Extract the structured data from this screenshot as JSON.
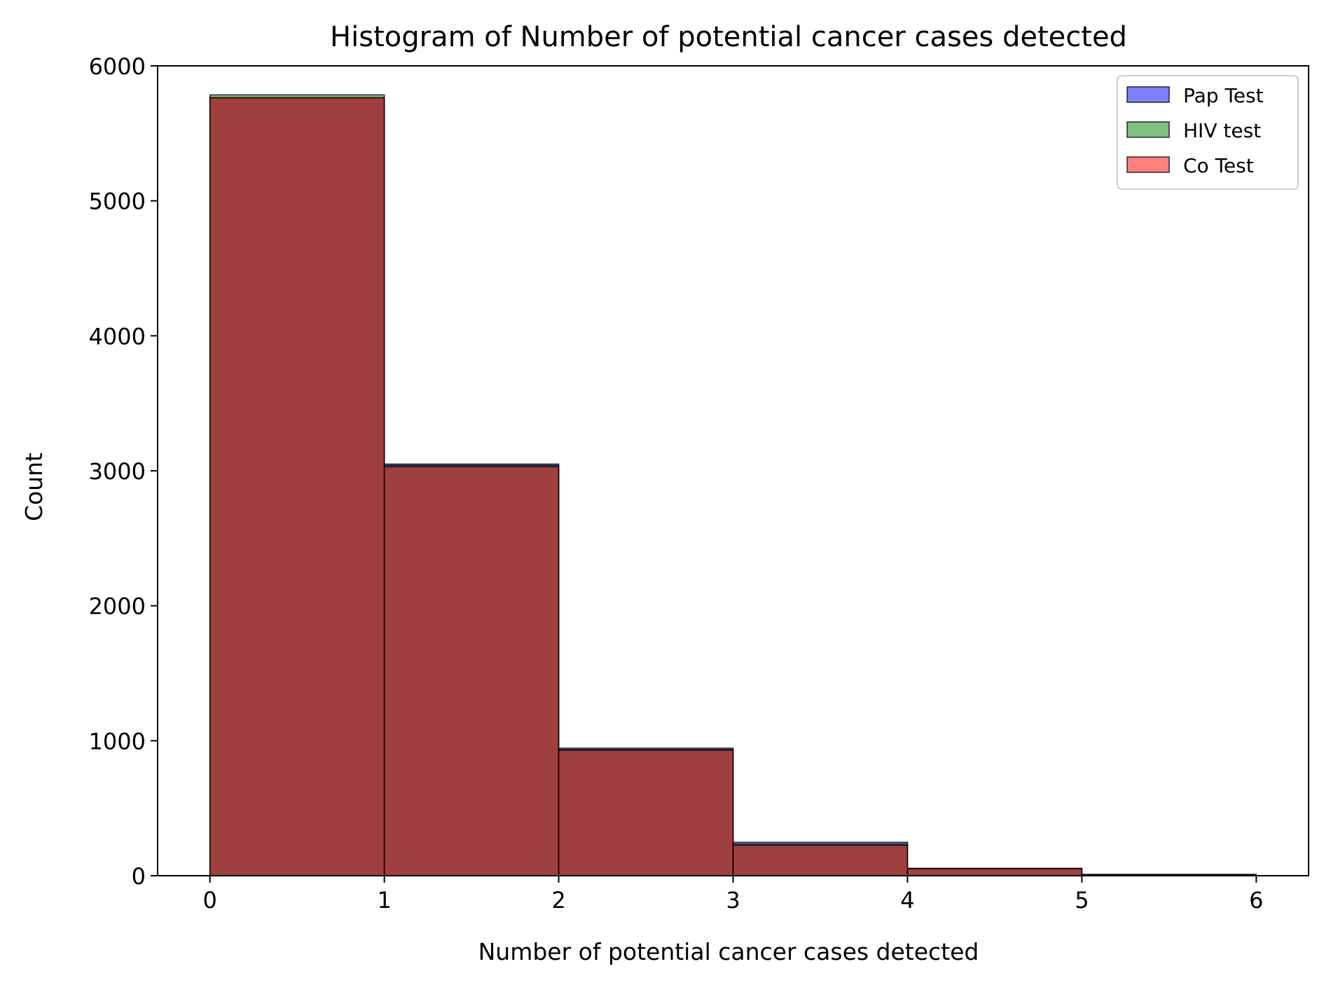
{
  "chart_data": {
    "type": "bar",
    "subtype": "histogram-overlay",
    "title": "Histogram of Number of potential cancer cases detected",
    "xlabel": "Number of potential cancer cases detected",
    "ylabel": "Count",
    "bin_edges": [
      0,
      1,
      2,
      3,
      4,
      5,
      6
    ],
    "xlim": [
      -0.3,
      6.3
    ],
    "ylim": [
      0,
      6000
    ],
    "xticks": [
      0,
      1,
      2,
      3,
      4,
      5,
      6
    ],
    "yticks": [
      0,
      1000,
      2000,
      3000,
      4000,
      5000,
      6000
    ],
    "legend_position": "top-right",
    "grid": false,
    "series": [
      {
        "name": "Pap Test",
        "color": "#0000ff",
        "values": [
          5760,
          3050,
          945,
          248,
          55,
          10
        ]
      },
      {
        "name": "HIV test",
        "color": "#008000",
        "values": [
          5785,
          3040,
          935,
          235,
          53,
          8
        ]
      },
      {
        "name": "Co Test",
        "color": "#ff0000",
        "values": [
          5765,
          3030,
          930,
          225,
          52,
          8
        ]
      }
    ]
  }
}
